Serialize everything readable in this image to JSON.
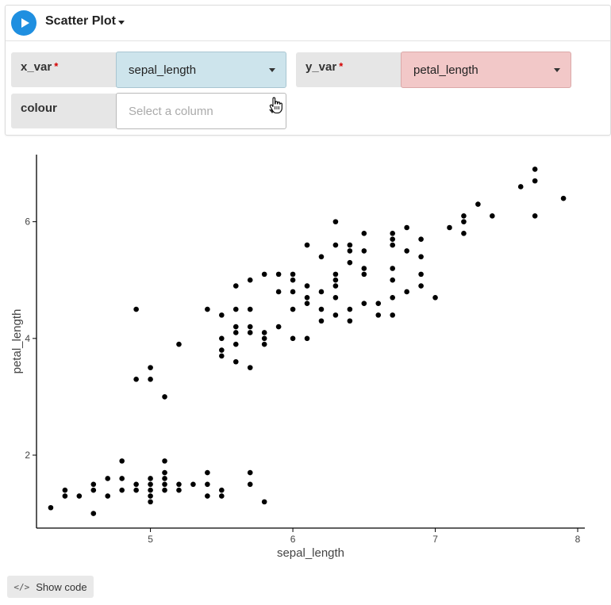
{
  "header": {
    "title": "Scatter Plot"
  },
  "fields": {
    "x_var": {
      "label": "x_var",
      "required_mark": "*",
      "value": "sepal_length"
    },
    "y_var": {
      "label": "y_var",
      "required_mark": "*",
      "value": "petal_length"
    },
    "colour": {
      "label": "colour",
      "placeholder": "Select a column"
    }
  },
  "show_code": {
    "label": "Show code"
  },
  "colors": {
    "play": "#1f8fe0",
    "x_select": "#cde4ec",
    "y_select": "#f2c8c8",
    "point": "#000000"
  },
  "chart_data": {
    "type": "scatter",
    "xlabel": "sepal_length",
    "ylabel": "petal_length",
    "xlim": [
      4.2,
      8.05
    ],
    "ylim": [
      0.75,
      7.15
    ],
    "xticks": [
      5,
      6,
      7,
      8
    ],
    "yticks": [
      2,
      4,
      6
    ],
    "grid": false,
    "points": [
      [
        4.3,
        1.1
      ],
      [
        4.4,
        1.3
      ],
      [
        4.4,
        1.4
      ],
      [
        4.5,
        1.3
      ],
      [
        4.6,
        1.0
      ],
      [
        4.6,
        1.4
      ],
      [
        4.6,
        1.5
      ],
      [
        4.7,
        1.3
      ],
      [
        4.7,
        1.6
      ],
      [
        4.8,
        1.4
      ],
      [
        4.8,
        1.6
      ],
      [
        4.8,
        1.9
      ],
      [
        4.9,
        1.4
      ],
      [
        4.9,
        1.5
      ],
      [
        4.9,
        3.3
      ],
      [
        4.9,
        4.5
      ],
      [
        5.0,
        1.2
      ],
      [
        5.0,
        1.3
      ],
      [
        5.0,
        1.4
      ],
      [
        5.0,
        1.5
      ],
      [
        5.0,
        1.6
      ],
      [
        5.0,
        3.3
      ],
      [
        5.0,
        3.5
      ],
      [
        5.1,
        1.4
      ],
      [
        5.1,
        1.5
      ],
      [
        5.1,
        1.6
      ],
      [
        5.1,
        1.7
      ],
      [
        5.1,
        1.9
      ],
      [
        5.1,
        3.0
      ],
      [
        5.2,
        1.4
      ],
      [
        5.2,
        1.5
      ],
      [
        5.2,
        3.9
      ],
      [
        5.3,
        1.5
      ],
      [
        5.4,
        1.3
      ],
      [
        5.4,
        1.5
      ],
      [
        5.4,
        1.7
      ],
      [
        5.4,
        4.5
      ],
      [
        5.5,
        1.3
      ],
      [
        5.5,
        1.4
      ],
      [
        5.5,
        3.7
      ],
      [
        5.5,
        3.8
      ],
      [
        5.5,
        4.0
      ],
      [
        5.5,
        4.4
      ],
      [
        5.6,
        3.6
      ],
      [
        5.6,
        3.9
      ],
      [
        5.6,
        4.1
      ],
      [
        5.6,
        4.2
      ],
      [
        5.6,
        4.5
      ],
      [
        5.6,
        4.9
      ],
      [
        5.7,
        1.5
      ],
      [
        5.7,
        1.7
      ],
      [
        5.7,
        3.5
      ],
      [
        5.7,
        4.1
      ],
      [
        5.7,
        4.2
      ],
      [
        5.7,
        4.5
      ],
      [
        5.7,
        5.0
      ],
      [
        5.8,
        1.2
      ],
      [
        5.8,
        3.9
      ],
      [
        5.8,
        4.0
      ],
      [
        5.8,
        4.1
      ],
      [
        5.8,
        5.1
      ],
      [
        5.9,
        4.2
      ],
      [
        5.9,
        4.8
      ],
      [
        5.9,
        5.1
      ],
      [
        6.0,
        4.0
      ],
      [
        6.0,
        4.5
      ],
      [
        6.0,
        4.8
      ],
      [
        6.0,
        5.0
      ],
      [
        6.0,
        5.1
      ],
      [
        6.1,
        4.0
      ],
      [
        6.1,
        4.6
      ],
      [
        6.1,
        4.7
      ],
      [
        6.1,
        4.9
      ],
      [
        6.1,
        5.6
      ],
      [
        6.2,
        4.3
      ],
      [
        6.2,
        4.5
      ],
      [
        6.2,
        4.8
      ],
      [
        6.2,
        5.4
      ],
      [
        6.3,
        4.4
      ],
      [
        6.3,
        4.7
      ],
      [
        6.3,
        4.9
      ],
      [
        6.3,
        5.0
      ],
      [
        6.3,
        5.1
      ],
      [
        6.3,
        5.6
      ],
      [
        6.3,
        6.0
      ],
      [
        6.4,
        4.3
      ],
      [
        6.4,
        4.5
      ],
      [
        6.4,
        5.3
      ],
      [
        6.4,
        5.5
      ],
      [
        6.4,
        5.6
      ],
      [
        6.5,
        4.6
      ],
      [
        6.5,
        5.1
      ],
      [
        6.5,
        5.2
      ],
      [
        6.5,
        5.5
      ],
      [
        6.5,
        5.8
      ],
      [
        6.6,
        4.4
      ],
      [
        6.6,
        4.6
      ],
      [
        6.7,
        4.4
      ],
      [
        6.7,
        4.7
      ],
      [
        6.7,
        5.0
      ],
      [
        6.7,
        5.2
      ],
      [
        6.7,
        5.6
      ],
      [
        6.7,
        5.7
      ],
      [
        6.7,
        5.8
      ],
      [
        6.8,
        4.8
      ],
      [
        6.8,
        5.5
      ],
      [
        6.8,
        5.9
      ],
      [
        6.9,
        4.9
      ],
      [
        6.9,
        5.1
      ],
      [
        6.9,
        5.4
      ],
      [
        6.9,
        5.7
      ],
      [
        7.0,
        4.7
      ],
      [
        7.1,
        5.9
      ],
      [
        7.2,
        5.8
      ],
      [
        7.2,
        6.0
      ],
      [
        7.2,
        6.1
      ],
      [
        7.3,
        6.3
      ],
      [
        7.4,
        6.1
      ],
      [
        7.6,
        6.6
      ],
      [
        7.7,
        6.1
      ],
      [
        7.7,
        6.7
      ],
      [
        7.7,
        6.9
      ],
      [
        7.9,
        6.4
      ]
    ]
  }
}
